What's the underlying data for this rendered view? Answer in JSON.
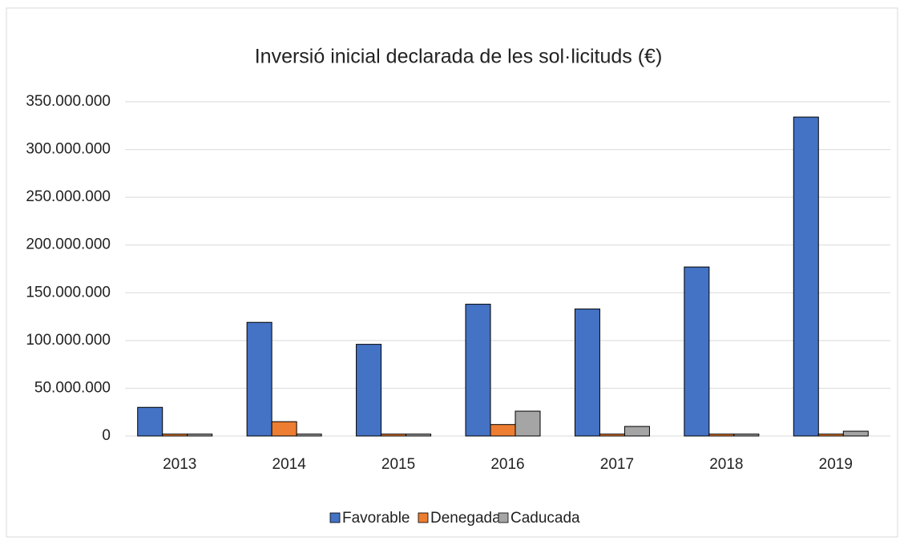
{
  "chart_data": {
    "type": "bar",
    "title": "Inversió  inicial declarada  de les sol·licituds (€)",
    "categories": [
      "2013",
      "2014",
      "2015",
      "2016",
      "2017",
      "2018",
      "2019"
    ],
    "series": [
      {
        "name": "Favorable",
        "color": "#4472c4",
        "values": [
          30000000,
          119000000,
          96000000,
          138000000,
          133000000,
          177000000,
          334000000
        ]
      },
      {
        "name": "Denegada",
        "color": "#ed7d31",
        "values": [
          2000000,
          15000000,
          2000000,
          12000000,
          2000000,
          2000000,
          2000000
        ]
      },
      {
        "name": "Caducada",
        "color": "#a5a5a5",
        "values": [
          2000000,
          2000000,
          2000000,
          26000000,
          10000000,
          2000000,
          5000000
        ]
      }
    ],
    "ylim": [
      0,
      350000000
    ],
    "yticks": [
      0,
      {
        "value": 50000000,
        "label": "50.000.000"
      },
      {
        "value": 100000000,
        "label": "100.000.000"
      },
      {
        "value": 150000000,
        "label": "150.000.000"
      },
      {
        "value": 200000000,
        "label": "200.000.000"
      },
      {
        "value": 250000000,
        "label": "250.000.000"
      },
      {
        "value": 300000000,
        "label": "300.000.000"
      },
      {
        "value": 350000000,
        "label": "350.000.000"
      }
    ],
    "grid": true,
    "legend": "bottom"
  }
}
